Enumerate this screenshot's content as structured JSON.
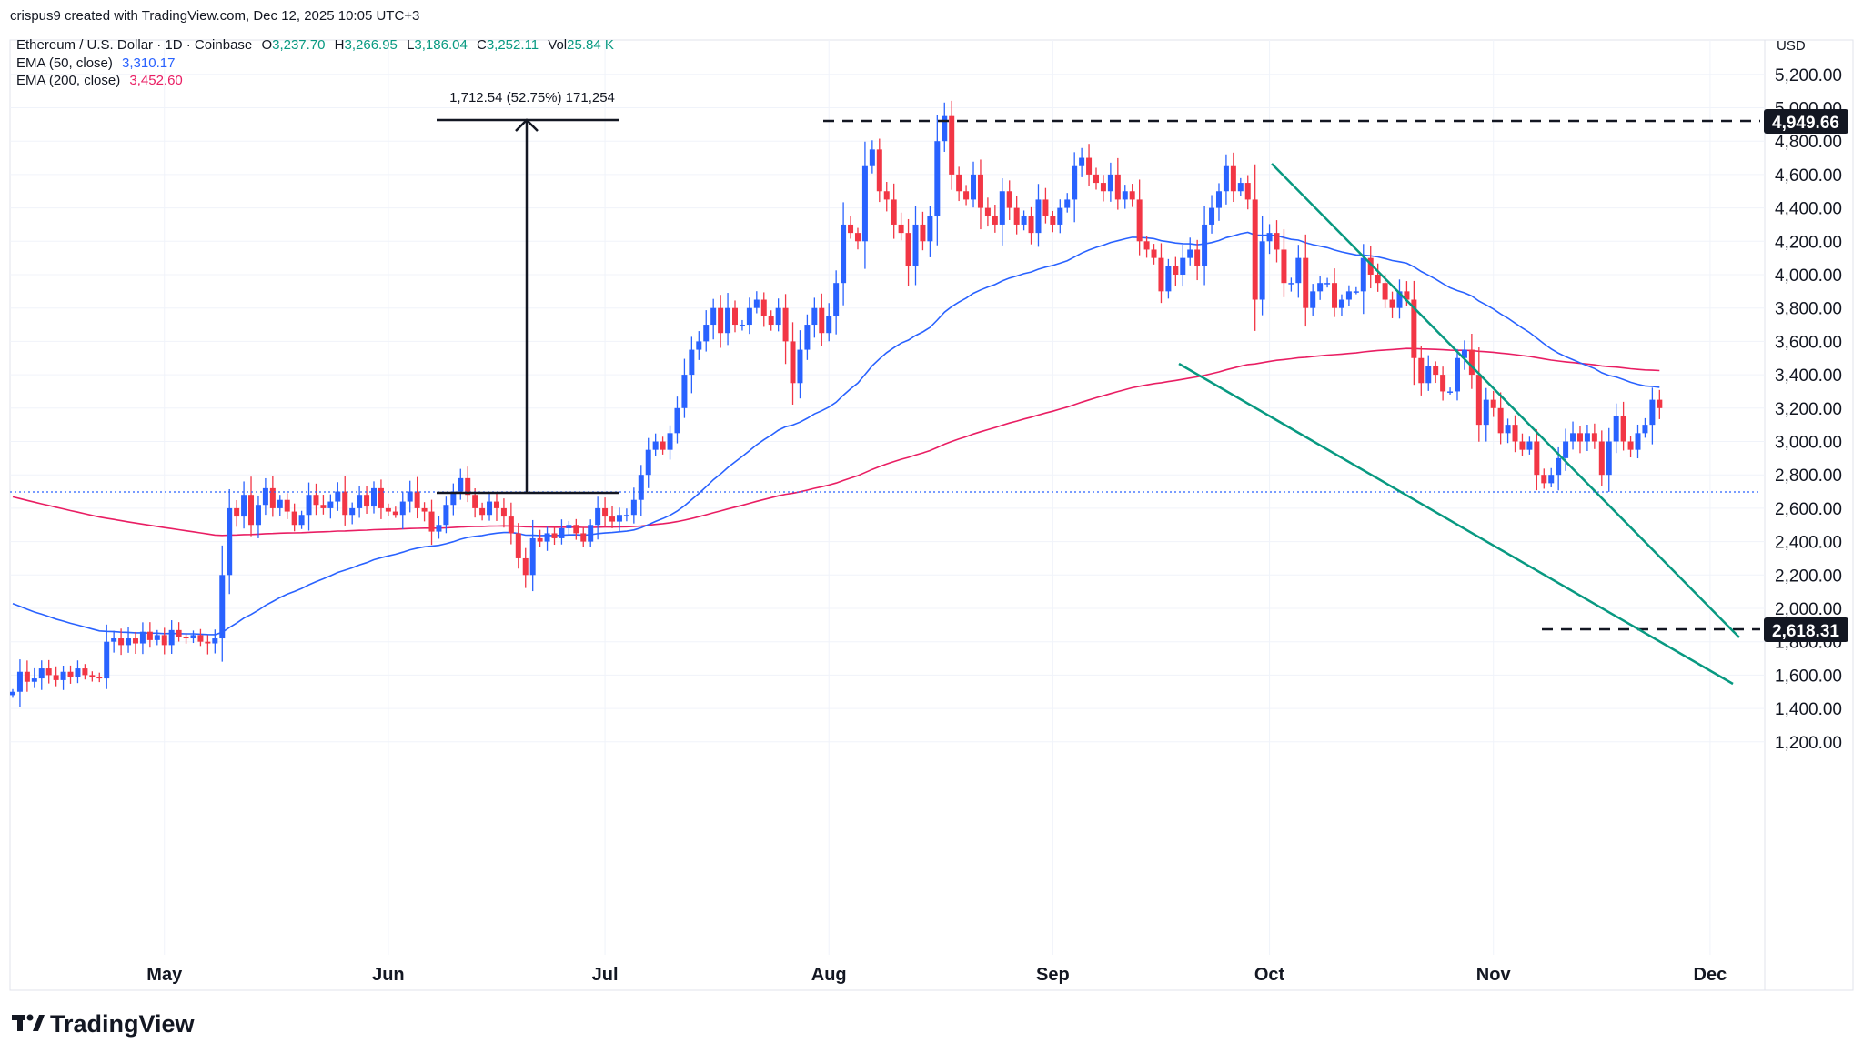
{
  "header": {
    "credit": "crispus9 created with TradingView.com, Dec 12, 2025 10:05 UTC+3",
    "symbol": "Ethereum / U.S. Dollar · 1D · Coinbase",
    "open_label": "O",
    "open": "3,237.70",
    "high_label": "H",
    "high": "3,266.95",
    "low_label": "L",
    "low": "3,186.04",
    "close_label": "C",
    "close": "3,252.11",
    "vol_label": "Vol",
    "vol": "25.84 K",
    "ema50_label": "EMA (50, close)",
    "ema50_value": "3,310.17",
    "ema200_label": "EMA (200, close)",
    "ema200_value": "3,452.60"
  },
  "measure_label": "1,712.54 (52.75%) 171,254",
  "currency": "USD",
  "brand": "TradingView",
  "colors": {
    "up": "#2962ff",
    "down": "#f23645",
    "ema50": "#2962ff",
    "ema200": "#e91e63",
    "wedge": "#089981",
    "grid": "#f0f3fa",
    "text": "#131722"
  },
  "chart_data": {
    "type": "candlestick",
    "ylim": [
      1100,
      5350
    ],
    "y_ticks": [
      "5,200.00",
      "5,000.00",
      "4,800.00",
      "4,600.00",
      "4,400.00",
      "4,200.00",
      "4,000.00",
      "3,800.00",
      "3,600.00",
      "3,400.00",
      "3,200.00",
      "3,000.00",
      "2,800.00",
      "2,600.00",
      "2,400.00",
      "2,200.00",
      "2,000.00",
      "1,800.00",
      "1,600.00",
      "1,400.00",
      "1,200.00"
    ],
    "y_tick_values": [
      5200,
      5000,
      4800,
      4600,
      4400,
      4200,
      4000,
      3800,
      3600,
      3400,
      3200,
      3000,
      2800,
      2600,
      2400,
      2200,
      2000,
      1800,
      1600,
      1400,
      1200
    ],
    "months": [
      {
        "label": "May",
        "bar": 21
      },
      {
        "label": "Jun",
        "bar": 52
      },
      {
        "label": "Jul",
        "bar": 82
      },
      {
        "label": "Aug",
        "bar": 113
      },
      {
        "label": "Sep",
        "bar": 144
      },
      {
        "label": "Oct",
        "bar": 174
      },
      {
        "label": "Nov",
        "bar": 205
      },
      {
        "label": "Dec",
        "bar": 235
      }
    ],
    "closes": [
      1500,
      1620,
      1560,
      1580,
      1640,
      1600,
      1570,
      1620,
      1590,
      1640,
      1600,
      1590,
      1580,
      1800,
      1820,
      1780,
      1820,
      1790,
      1860,
      1810,
      1840,
      1780,
      1870,
      1830,
      1820,
      1840,
      1800,
      1790,
      1820,
      2200,
      2600,
      2550,
      2680,
      2500,
      2620,
      2720,
      2600,
      2650,
      2580,
      2500,
      2560,
      2680,
      2620,
      2600,
      2640,
      2700,
      2560,
      2600,
      2680,
      2610,
      2720,
      2600,
      2580,
      2560,
      2640,
      2700,
      2600,
      2580,
      2460,
      2500,
      2620,
      2700,
      2780,
      2680,
      2600,
      2560,
      2640,
      2600,
      2550,
      2450,
      2300,
      2200,
      2420,
      2400,
      2450,
      2420,
      2480,
      2500,
      2450,
      2400,
      2500,
      2600,
      2550,
      2520,
      2560,
      2560,
      2650,
      2800,
      2950,
      3000,
      2950,
      3050,
      3200,
      3400,
      3550,
      3600,
      3700,
      3800,
      3650,
      3800,
      3700,
      3700,
      3800,
      3850,
      3750,
      3700,
      3800,
      3600,
      3350,
      3550,
      3700,
      3800,
      3650,
      3750,
      3950,
      4300,
      4250,
      4200,
      4650,
      4750,
      4500,
      4450,
      4300,
      4250,
      4050,
      4300,
      4200,
      4350,
      4800,
      4950,
      4600,
      4500,
      4450,
      4600,
      4400,
      4350,
      4300,
      4500,
      4400,
      4300,
      4350,
      4250,
      4450,
      4350,
      4300,
      4400,
      4450,
      4650,
      4700,
      4600,
      4550,
      4500,
      4600,
      4450,
      4500,
      4450,
      4200,
      4150,
      4100,
      3900,
      4050,
      4000,
      4100,
      4150,
      4050,
      4300,
      4400,
      4500,
      4650,
      4500,
      4550,
      4450,
      3850,
      4200,
      4250,
      4150,
      3950,
      3950,
      4100,
      3800,
      3900,
      3950,
      3950,
      3800,
      3850,
      3900,
      3900,
      4100,
      4000,
      3950,
      3850,
      3800,
      3900,
      3850,
      3500,
      3350,
      3450,
      3400,
      3300,
      3300,
      3500,
      3550,
      3400,
      3100,
      3250,
      3200,
      3050,
      3100,
      3000,
      2950,
      3000,
      2800,
      2750,
      2800,
      2900,
      3000,
      3050,
      3000,
      3050,
      3000,
      2800,
      3000,
      3150,
      3000,
      2950,
      3050,
      3100,
      3250,
      3200
    ]
  }
}
